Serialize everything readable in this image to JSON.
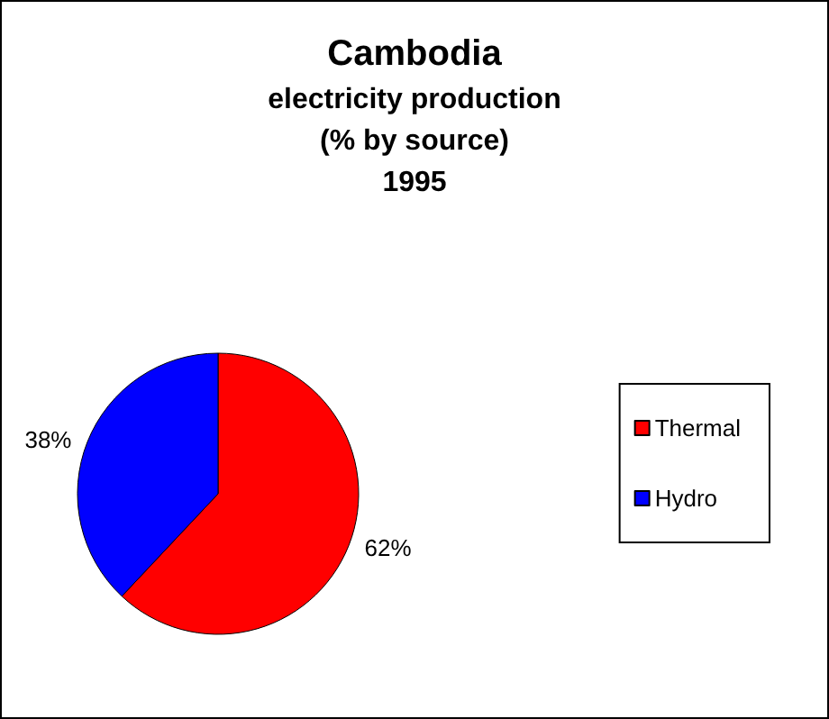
{
  "chart_data": {
    "type": "pie",
    "title": "Cambodia",
    "subtitle": "electricity production\n(% by source)\n1995",
    "categories": [
      "Thermal",
      "Hydro"
    ],
    "values": [
      62,
      38
    ],
    "colors": [
      "#ff0000",
      "#0000ff"
    ],
    "value_labels": [
      "62%",
      "38%"
    ],
    "legend": "right"
  }
}
